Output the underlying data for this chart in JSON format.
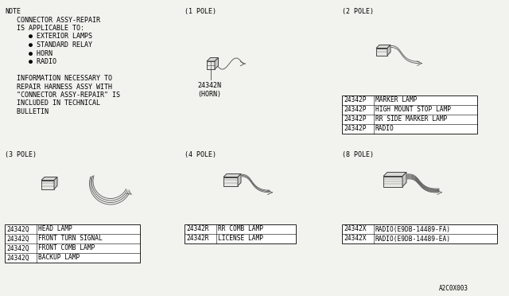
{
  "bg_color": "#f2f2ee",
  "note_lines": [
    "NOTE",
    "   CONNECTOR ASSY-REPAIR",
    "   IS APPLICABLE TO:",
    "      ● EXTERIOR LAMPS",
    "      ● STANDARD RELAY",
    "      ● HORN",
    "      ● RADIO",
    "",
    "   INFORMATION NECESSARY TO",
    "   REPAIR HARNESS ASSY WITH",
    "   \"CONNECTOR ASSY-REPAIR\" IS",
    "   INCLUDED IN TECHNICAL",
    "   BULLETIN"
  ],
  "pole1_label": "(1 POLE)",
  "pole1_part": "24342N",
  "pole1_sub": "(HORN)",
  "pole2_label": "(2 POLE)",
  "pole2_table": [
    [
      "24342P",
      "MARKER LAMP"
    ],
    [
      "24342P",
      "HIGH MOUNT STOP LAMP"
    ],
    [
      "24342P",
      "RR SIDE MARKER LAMP"
    ],
    [
      "24342P",
      "RADIO"
    ]
  ],
  "pole3_label": "(3 POLE)",
  "pole3_table": [
    [
      "24342Q",
      "HEAD LAMP"
    ],
    [
      "24342Q",
      "FRONT TURN SIGNAL"
    ],
    [
      "24342Q",
      "FRONT COMB LAMP"
    ],
    [
      "24342Q",
      "BACKUP LAMP"
    ]
  ],
  "pole4_label": "(4 POLE)",
  "pole4_table": [
    [
      "24342R",
      "RR COMB LAMP"
    ],
    [
      "24342R",
      "LICENSE LAMP"
    ]
  ],
  "pole8_label": "(8 POLE)",
  "pole8_table": [
    [
      "24342X",
      "RADIO(E9DB-14489-FA)"
    ],
    [
      "24342X",
      "RADIO(E9DB-14489-EA)"
    ]
  ],
  "footer": "A2C0X003"
}
